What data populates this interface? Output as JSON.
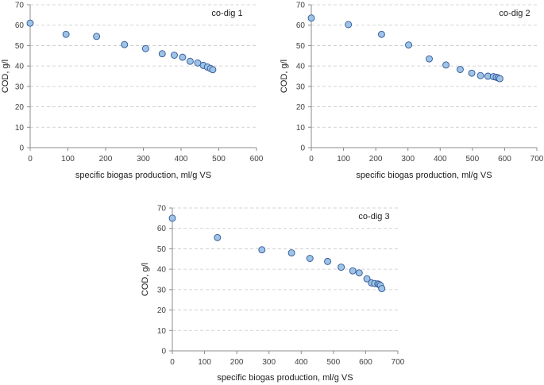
{
  "colors": {
    "marker_fill": "#9dc3e6",
    "marker_stroke": "#2f5597",
    "grid": "#c8c8c8",
    "axis": "#8c8c8c"
  },
  "chart_data": [
    {
      "type": "scatter",
      "title": "co-dig 1",
      "xlabel": "specific biogas production, ml/g VS",
      "ylabel": "COD, g/l",
      "xlim": [
        0,
        600
      ],
      "ylim": [
        0,
        70
      ],
      "xticks": [
        0,
        100,
        200,
        300,
        400,
        500,
        600
      ],
      "yticks": [
        0,
        10,
        20,
        30,
        40,
        50,
        60,
        70
      ],
      "grid": "horizontal dashed",
      "x": [
        0,
        95,
        176,
        250,
        306,
        350,
        382,
        404,
        424,
        444,
        459,
        470,
        478,
        484
      ],
      "y": [
        61,
        55.5,
        54.5,
        50.5,
        48.5,
        46,
        45.3,
        44.3,
        42.3,
        41.5,
        40.3,
        39.5,
        38.8,
        38.2
      ]
    },
    {
      "type": "scatter",
      "title": "co-dig 2",
      "xlabel": "specific biogas production, ml/g VS",
      "ylabel": "COD, g/l",
      "xlim": [
        0,
        700
      ],
      "ylim": [
        0,
        70
      ],
      "xticks": [
        0,
        100,
        200,
        300,
        400,
        500,
        600,
        700
      ],
      "yticks": [
        0,
        10,
        20,
        30,
        40,
        50,
        60,
        70
      ],
      "grid": "horizontal dashed",
      "x": [
        0,
        115,
        218,
        302,
        366,
        418,
        462,
        498,
        525,
        548,
        565,
        574,
        580,
        585
      ],
      "y": [
        63.5,
        60.3,
        55.5,
        50.3,
        43.5,
        40.5,
        38.3,
        36.5,
        35.3,
        35,
        34.8,
        34.5,
        34.2,
        33.8
      ]
    },
    {
      "type": "scatter",
      "title": "co-dig 3",
      "xlabel": "specific biogas production, ml/g VS",
      "ylabel": "COD, g/l",
      "xlim": [
        0,
        700
      ],
      "ylim": [
        0,
        70
      ],
      "xticks": [
        0,
        100,
        200,
        300,
        400,
        500,
        600,
        700
      ],
      "yticks": [
        0,
        10,
        20,
        30,
        40,
        50,
        60,
        70
      ],
      "grid": "horizontal dashed",
      "x": [
        0,
        140,
        278,
        370,
        427,
        482,
        524,
        560,
        580,
        604,
        618,
        628,
        638,
        642,
        646,
        650
      ],
      "y": [
        65,
        55.5,
        49.5,
        48,
        45.3,
        43.8,
        41,
        39.2,
        38.2,
        35.3,
        33.3,
        33,
        32.8,
        32.5,
        32,
        30.5
      ]
    }
  ]
}
